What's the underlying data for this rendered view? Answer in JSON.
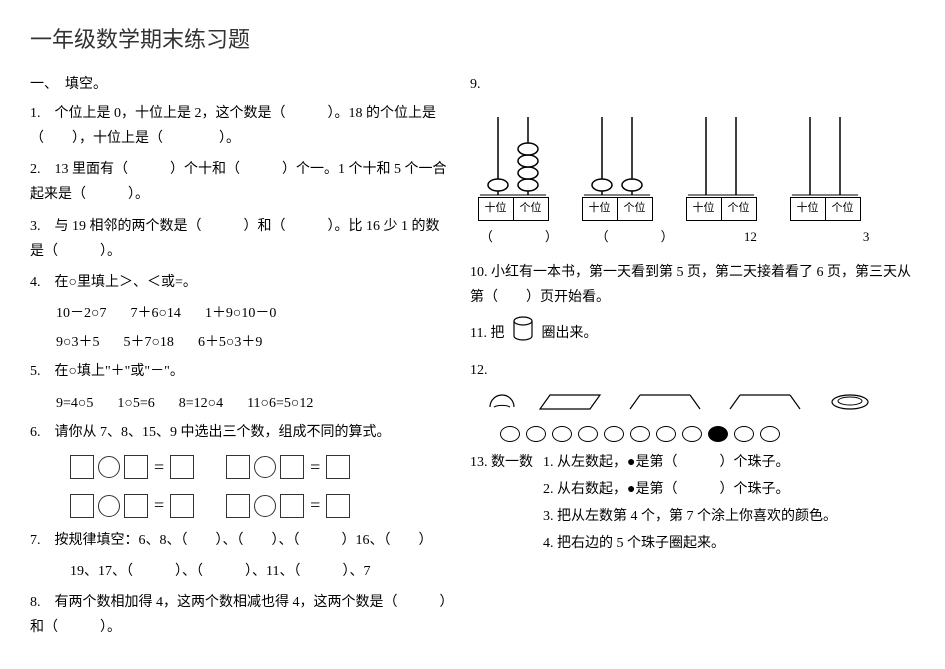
{
  "title": "一年级数学期末练习题",
  "section1": "一、　填空。",
  "q1": "1.　个位上是 0，十位上是 2，这个数是（　　　）。18 的个位上是（　　），十位上是（　　　　）。",
  "q2": "2.　13 里面有（　　　）个十和（　　　）个一。1 个十和 5 个一合起来是（　　　）。",
  "q3": "3.　与 19 相邻的两个数是（　　　）和（　　　）。比 16 少 1 的数是（　　　）。",
  "q4_title": "4.　在○里填上＞、＜或=。",
  "q4_row1": {
    "a": "10－2○7",
    "b": "7＋6○14",
    "c": "1＋9○10－0"
  },
  "q4_row2": {
    "a": "9○3＋5",
    "b": "5＋7○18",
    "c": "6＋5○3＋9"
  },
  "q5_title": "5.　在○填上\"＋\"或\"－\"。",
  "q5_row": {
    "a": "9=4○5",
    "b": "1○5=6",
    "c": "8=12○4",
    "d": "11○6=5○12"
  },
  "q6_title": "6.　请你从 7、8、15、9 中选出三个数，组成不同的算式。",
  "q7_title": "7.　按规律填空：6、8、（　　）、（　　）、（　　　）16、（　　）",
  "q7_line2": "19、17、（　　　）、（　　　）、11、（　　　）、7",
  "q8": "8.　有两个数相加得  4，这两个数相减也得  4，这两个数是（　　　）和（　　　）。",
  "q9_num": "9.",
  "abacus_labels": {
    "tens": "十位",
    "ones": "个位"
  },
  "abacus_answers": {
    "a1": "（　　　　）",
    "a2": "（　　　　）",
    "a3": "12",
    "a4": "3"
  },
  "q10": "10. 小红有一本书，第一天看到第 5 页，第二天接着看了 6 页，第三天从第（　　）页开始看。",
  "q11_prefix": "11. 把",
  "q11_suffix": "圈出来。",
  "q12_num": "12.",
  "q13_prefix": "13. 数一数",
  "q13_l1": "1. 从左数起，●是第（　　　）个珠子。",
  "q13_l2": "2. 从右数起，●是第（　　　）个珠子。",
  "q13_l3": "3. 把从左数第 4 个，第 7 个涂上你喜欢的颜色。",
  "q13_l4": "4. 把右边的 5 个珠子圈起来。",
  "bead_count": 11,
  "bead_filled_index": 8
}
